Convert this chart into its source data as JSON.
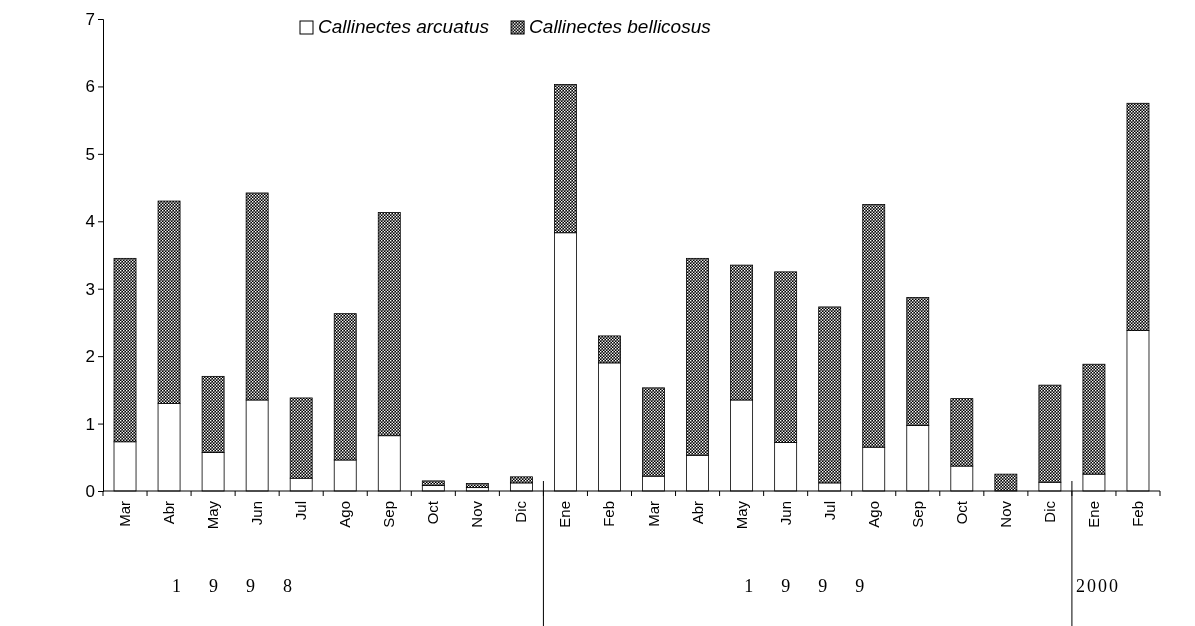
{
  "chart_data": {
    "type": "bar",
    "stacked": true,
    "categories": [
      "Mar",
      "Abr",
      "May",
      "Jun",
      "Jul",
      "Ago",
      "Sep",
      "Oct",
      "Nov",
      "Dic",
      "Ene",
      "Feb",
      "Mar",
      "Abr",
      "May",
      "Jun",
      "Jul",
      "Ago",
      "Sep",
      "Oct",
      "Nov",
      "Dic",
      "Ene",
      "Feb"
    ],
    "series": [
      {
        "name": "Callinectes arcuatus",
        "color": "#ffffff",
        "values": [
          0.73,
          1.3,
          0.57,
          1.35,
          0.19,
          0.46,
          0.82,
          0.08,
          0.05,
          0.12,
          3.83,
          1.9,
          0.22,
          0.53,
          1.35,
          0.72,
          0.12,
          0.65,
          0.97,
          0.37,
          null,
          0.13,
          0.25,
          2.38
        ]
      },
      {
        "name": "Callinectes bellicosus",
        "color": "#000000",
        "values": [
          2.72,
          3.0,
          1.13,
          3.07,
          1.19,
          2.17,
          3.31,
          0.07,
          0.06,
          0.09,
          2.2,
          0.4,
          1.31,
          2.92,
          2.0,
          2.53,
          2.61,
          3.6,
          1.9,
          1.0,
          0.25,
          1.44,
          1.63,
          3.37
        ]
      }
    ],
    "ylim": [
      0,
      7
    ],
    "yticks": [
      0,
      1,
      2,
      3,
      4,
      5,
      6,
      7
    ],
    "grid": false,
    "legend": "top",
    "annotations": [
      "1998",
      "1999",
      "2000"
    ]
  }
}
